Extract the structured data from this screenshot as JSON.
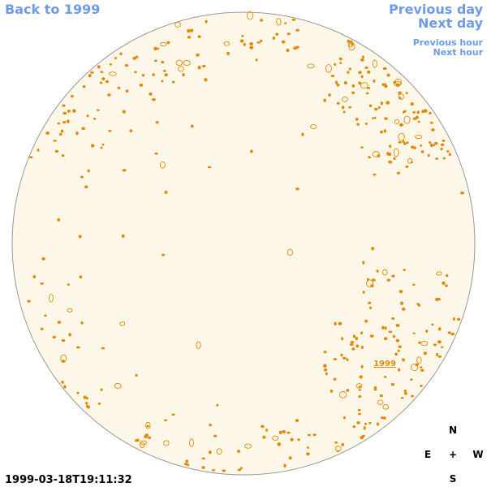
{
  "nav": {
    "back": "Back to 1999",
    "previous_day": "Previous day",
    "next_day": "Next day",
    "previous_hour": "Previous hour",
    "next_hour": "Next hour"
  },
  "disk_label": "1999",
  "compass": {
    "north": "N",
    "east": "E",
    "center": "+",
    "west": "W",
    "south": "S"
  },
  "timestamp": "1999-03-18T19:11:32"
}
